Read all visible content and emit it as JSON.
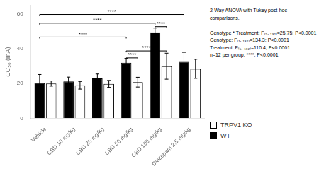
{
  "chart_data": {
    "type": "bar",
    "categories": [
      "Vehicle",
      "CBD 10 mg/kg",
      "CBD 25 mg/kg",
      "CBD 50 mg/kg",
      "CBD 100 mg/kg",
      "Diazepam 2.5 mg/kg"
    ],
    "series": [
      {
        "name": "WT",
        "color": "#000000",
        "values": [
          20.2,
          21.2,
          23.0,
          32.0,
          49.5,
          32.5
        ],
        "errors": [
          5.0,
          2.5,
          2.5,
          2.5,
          2.5,
          5.5
        ]
      },
      {
        "name": "TRPV1 KO",
        "color": "#ffffff",
        "values": [
          20.0,
          19.0,
          19.8,
          20.8,
          30.0,
          28.5
        ],
        "errors": [
          1.5,
          2.2,
          2.0,
          2.8,
          7.5,
          5.5
        ]
      }
    ],
    "ylabel": "CC₅₀ (mA)",
    "ylim": [
      0,
      65
    ],
    "yticks": [
      0,
      20,
      40,
      60
    ],
    "grid": false,
    "legend": "lower right",
    "brackets": [
      {
        "text": "****",
        "y": 46,
        "from": {
          "category": "Vehicle",
          "series": "WT"
        },
        "to": {
          "category": "CBD 50 mg/kg",
          "series": "WT"
        }
      },
      {
        "text": "****",
        "y": 54,
        "from": {
          "category": "Vehicle",
          "series": "WT"
        },
        "to": {
          "category": "CBD 100 mg/kg",
          "series": "WT"
        }
      },
      {
        "text": "****",
        "y": 59,
        "from": {
          "category": "Vehicle",
          "series": "WT"
        },
        "to": {
          "category": "Diazepam 2.5 mg/kg",
          "series": "WT"
        }
      },
      {
        "text": "****",
        "y": 34,
        "from": {
          "category": "CBD 50 mg/kg",
          "series": "WT"
        },
        "to": {
          "category": "CBD 50 mg/kg",
          "series": "TRPV1 KO"
        }
      },
      {
        "text": "****",
        "y": 52,
        "from": {
          "category": "CBD 100 mg/kg",
          "series": "WT"
        },
        "to": {
          "category": "CBD 100 mg/kg",
          "series": "TRPV1 KO"
        }
      },
      {
        "text": "****",
        "y": 38,
        "from": {
          "category": "CBD 50 mg/kg",
          "series": "WT"
        },
        "to": {
          "category": "CBD 100 mg/kg",
          "series": "TRPV1 KO"
        }
      }
    ],
    "annotation": "2-Way ANOVA with Tukey post-hoc\ncomparisons.\n\nGenotype * Treatment: F₍₅, ₁₃₂₎=25.75; P<0.0001\nGenotype: F₍₁, ₁₃₂₎=134.3; P<0.0001\nTreatment: F₍₅, ₁₃₂₎=110.4; P<0.0001\nn=12 per group; ****: P<0.0001"
  }
}
